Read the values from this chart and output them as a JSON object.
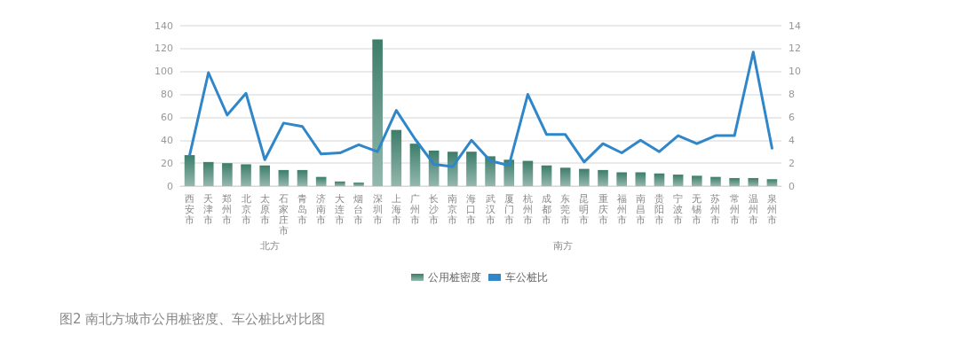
{
  "chart_data": {
    "type": "bar",
    "title": "图2 南北方城市公用桩密度、车公桩比对比图",
    "categories": [
      "西安市",
      "天津市",
      "郑州市",
      "北京市",
      "太原市",
      "石家庄市",
      "青岛市",
      "济南市",
      "大连市",
      "烟台市",
      "深圳市",
      "上海市",
      "广州市",
      "长沙市",
      "南京市",
      "海口市",
      "武汉市",
      "厦门市",
      "杭州市",
      "成都市",
      "东莞市",
      "昆明市",
      "重庆市",
      "福州市",
      "南昌市",
      "贵阳市",
      "宁波市",
      "无锡市",
      "苏州市",
      "常州市",
      "温州市",
      "泉州市"
    ],
    "series": [
      {
        "name": "公用桩密度",
        "color": "#3d7d6a",
        "values": [
          27,
          21,
          20,
          19,
          18,
          14,
          14,
          8,
          4,
          3,
          128,
          49,
          37,
          31,
          30,
          30,
          26,
          23,
          22,
          18,
          16,
          15,
          14,
          12,
          12,
          11,
          10,
          9,
          8,
          7,
          7,
          6
        ]
      },
      {
        "name": "车公桩比",
        "type": "line",
        "axis": "y2",
        "color": "#2f86c8",
        "values": [
          2.7,
          9.9,
          6.2,
          8.1,
          2.3,
          5.5,
          5.2,
          2.8,
          2.9,
          3.6,
          3.0,
          6.6,
          4.1,
          1.9,
          1.7,
          4.0,
          2.2,
          1.8,
          8.0,
          4.5,
          4.5,
          2.1,
          3.7,
          2.9,
          4.0,
          3.0,
          4.4,
          3.7,
          4.4,
          4.4,
          11.7,
          3.3
        ]
      }
    ],
    "ylim": [
      0,
      140
    ],
    "yticks": [
      0,
      20,
      40,
      60,
      80,
      100,
      120,
      140
    ],
    "y2lim": [
      0,
      14
    ],
    "y2ticks": [
      0,
      2,
      4,
      6,
      8,
      10,
      12,
      14
    ],
    "annotations": [
      "北方",
      "南方"
    ],
    "grid": "y",
    "legend": "bottom",
    "marker": "none",
    "line_style": "solid"
  }
}
